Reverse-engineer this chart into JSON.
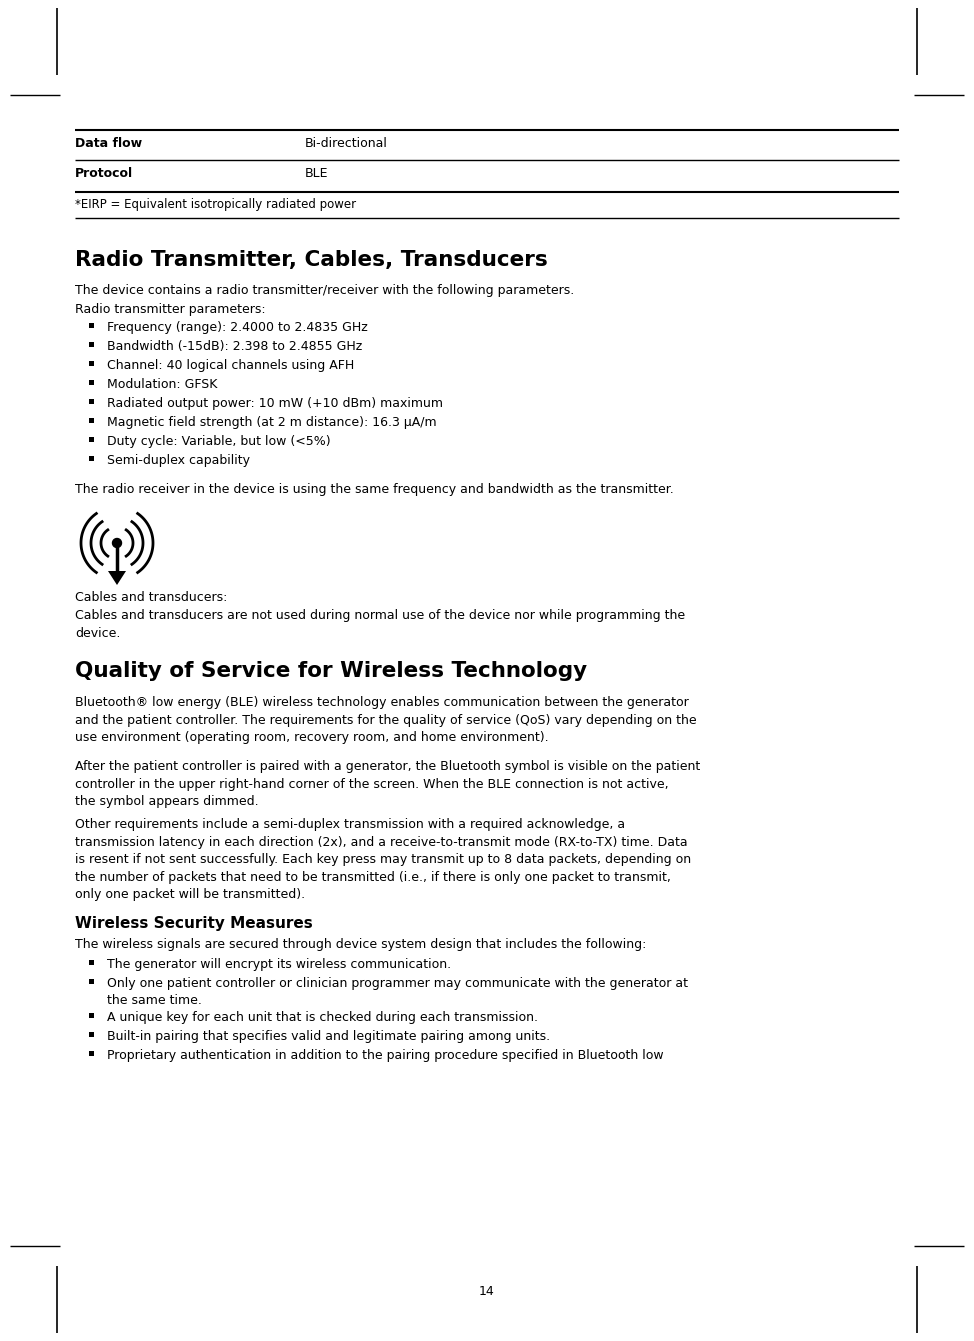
{
  "page_number": "14",
  "background_color": "#ffffff",
  "text_color": "#000000",
  "table_rows": [
    {
      "label": "Data flow",
      "value": "Bi-directional"
    },
    {
      "label": "Protocol",
      "value": "BLE"
    }
  ],
  "table_footnote": "*EIRP = Equivalent isotropically radiated power",
  "section1_title": "Radio Transmitter, Cables, Transducers",
  "section1_intro": "The device contains a radio transmitter/receiver with the following parameters.",
  "section1_sub": "Radio transmitter parameters:",
  "section1_bullets": [
    "Frequency (range): 2.4000 to 2.4835 GHz",
    "Bandwidth (-15dB): 2.398 to 2.4855 GHz",
    "Channel: 40 logical channels using AFH",
    "Modulation: GFSK",
    "Radiated output power: 10 mW (+10 dBm) maximum",
    "Magnetic field strength (at 2 m distance): 16.3 µA/m",
    "Duty cycle: Variable, but low (<5%)",
    "Semi-duplex capability"
  ],
  "section1_receiver": "The radio receiver in the device is using the same frequency and bandwidth as the transmitter.",
  "section1_cables_label": "Cables and transducers:",
  "section1_cables_text": "Cables and transducers are not used during normal use of the device nor while programming the\ndevice.",
  "section2_title": "Quality of Service for Wireless Technology",
  "section2_para1": "Bluetooth® low energy (BLE) wireless technology enables communication between the generator\nand the patient controller. The requirements for the quality of service (QoS) vary depending on the\nuse environment (operating room, recovery room, and home environment).",
  "section2_para2": "After the patient controller is paired with a generator, the Bluetooth symbol is visible on the patient\ncontroller in the upper right-hand corner of the screen. When the BLE connection is not active,\nthe symbol appears dimmed.",
  "section2_para3": "Other requirements include a semi-duplex transmission with a required acknowledge, a\ntransmission latency in each direction (2x), and a receive-to-transmit mode (RX-to-TX) time. Data\nis resent if not sent successfully. Each key press may transmit up to 8 data packets, depending on\nthe number of packets that need to be transmitted (i.e., if there is only one packet to transmit,\nonly one packet will be transmitted).",
  "section3_title": "Wireless Security Measures",
  "section3_intro": "The wireless signals are secured through device system design that includes the following:",
  "section3_bullets": [
    "The generator will encrypt its wireless communication.",
    "Only one patient controller or clinician programmer may communicate with the generator at\nthe same time.",
    "A unique key for each unit that is checked during each transmission.",
    "Built-in pairing that specifies valid and legitimate pairing among units.",
    "Proprietary authentication in addition to the pairing procedure specified in Bluetooth low"
  ]
}
